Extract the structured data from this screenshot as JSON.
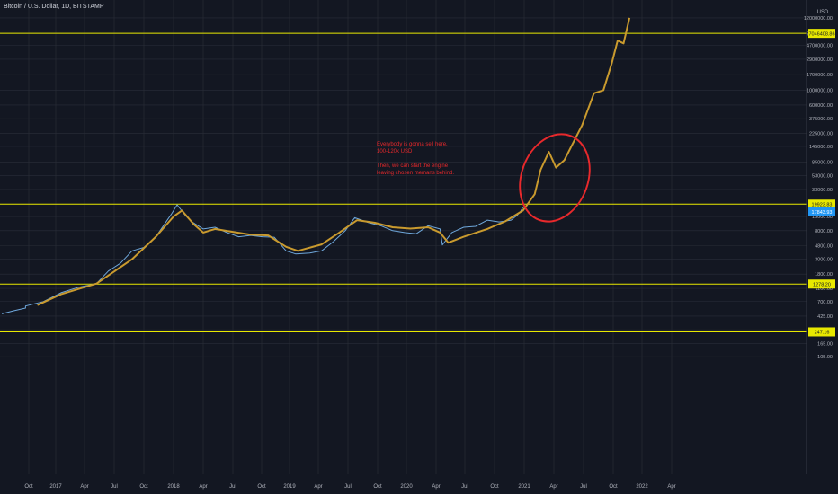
{
  "header": {
    "symbol_title": "Bitcoin / U.S. Dollar, 1D, BITSTAMP"
  },
  "annotation": {
    "line1": "Everybody is gonna sell here.",
    "line2": "100-120k USD",
    "line3": "Then, we can start the engine",
    "line4": "leaving chosen memans behind."
  },
  "colors": {
    "background": "#131722",
    "grid": "#2a2e39",
    "price": "#6fa8dc",
    "projection": "#c99a2e",
    "level_line": "#e8e800",
    "circle": "#e8292c",
    "last_price_badge": "#2196f3"
  },
  "chart_data": {
    "type": "line",
    "title": "Bitcoin / U.S. Dollar, 1D, BITSTAMP",
    "ylabel": "USD",
    "y_scale": "log",
    "y_ticks": [
      "12000000.00",
      "7000000.00",
      "4700000.00",
      "2900000.00",
      "1700000.00",
      "1000000.00",
      "600000.00",
      "375000.00",
      "225000.00",
      "145000.00",
      "85000.00",
      "53000.00",
      "33000.00",
      "20000.00",
      "13000.00",
      "8000.00",
      "4800.00",
      "3000.00",
      "1800.00",
      "1100.00",
      "700.00",
      "425.00",
      "265.00",
      "165.00",
      "105.00"
    ],
    "x_ticks": [
      "Oct",
      "2017",
      "Apr",
      "Jul",
      "Oct",
      "2018",
      "Apr",
      "Jul",
      "Oct",
      "2019",
      "Apr",
      "Jul",
      "Oct",
      "2020",
      "Apr",
      "Jul",
      "Oct",
      "2021",
      "Apr",
      "Jul",
      "Oct",
      "2022",
      "Apr"
    ],
    "horizontal_levels": [
      {
        "label": "7046408.86",
        "value": 7046408.86
      },
      {
        "label": "19923.83",
        "value": 19923.83
      },
      {
        "label": "1278.20",
        "value": 1278.2
      },
      {
        "label": "247.16",
        "value": 247.16
      }
    ],
    "last_price": {
      "label": "17843.93",
      "value": 17843.93
    },
    "series": [
      {
        "values": [
          [
            2016.7,
            600
          ],
          [
            2016.85,
            700
          ],
          [
            2017.0,
            950
          ],
          [
            2017.15,
            1150
          ],
          [
            2017.3,
            1300
          ],
          [
            2017.4,
            2000
          ],
          [
            2017.5,
            2600
          ],
          [
            2017.6,
            4000
          ],
          [
            2017.7,
            4500
          ],
          [
            2017.8,
            6500
          ],
          [
            2017.93,
            14000
          ],
          [
            2017.98,
            19500
          ],
          [
            2018.05,
            13500
          ],
          [
            2018.1,
            11000
          ],
          [
            2018.2,
            8500
          ],
          [
            2018.3,
            9000
          ],
          [
            2018.4,
            7500
          ],
          [
            2018.5,
            6500
          ],
          [
            2018.6,
            6800
          ],
          [
            2018.7,
            6500
          ],
          [
            2018.8,
            6400
          ],
          [
            2018.9,
            4000
          ],
          [
            2018.98,
            3600
          ],
          [
            2019.1,
            3700
          ],
          [
            2019.2,
            4000
          ],
          [
            2019.3,
            5500
          ],
          [
            2019.4,
            8000
          ],
          [
            2019.48,
            12500
          ],
          [
            2019.6,
            10500
          ],
          [
            2019.7,
            9500
          ],
          [
            2019.8,
            8000
          ],
          [
            2019.9,
            7500
          ],
          [
            2020.0,
            7200
          ],
          [
            2020.1,
            9500
          ],
          [
            2020.2,
            8500
          ],
          [
            2020.22,
            4900
          ],
          [
            2020.3,
            7500
          ],
          [
            2020.4,
            9000
          ],
          [
            2020.5,
            9300
          ],
          [
            2020.6,
            11500
          ],
          [
            2020.7,
            10800
          ],
          [
            2020.8,
            11500
          ],
          [
            2020.85,
            13500
          ],
          [
            2020.88,
            15500
          ],
          [
            2020.9,
            17843
          ]
        ]
      },
      {
        "values": [
          [
            2016.8,
            620
          ],
          [
            2017.0,
            900
          ],
          [
            2017.3,
            1300
          ],
          [
            2017.6,
            3000
          ],
          [
            2017.8,
            6500
          ],
          [
            2017.95,
            13000
          ],
          [
            2018.02,
            16000
          ],
          [
            2018.12,
            10000
          ],
          [
            2018.2,
            7500
          ],
          [
            2018.3,
            8500
          ],
          [
            2018.45,
            7700
          ],
          [
            2018.6,
            7000
          ],
          [
            2018.75,
            6800
          ],
          [
            2018.9,
            4600
          ],
          [
            2019.0,
            4000
          ],
          [
            2019.2,
            5000
          ],
          [
            2019.35,
            7500
          ],
          [
            2019.5,
            11500
          ],
          [
            2019.65,
            10500
          ],
          [
            2019.8,
            9000
          ],
          [
            2019.95,
            8600
          ],
          [
            2020.1,
            9000
          ],
          [
            2020.2,
            7500
          ],
          [
            2020.27,
            5300
          ],
          [
            2020.4,
            6500
          ],
          [
            2020.6,
            8500
          ],
          [
            2020.75,
            11000
          ],
          [
            2020.9,
            16000
          ],
          [
            2021.0,
            28000
          ],
          [
            2021.05,
            65000
          ],
          [
            2021.12,
            120000
          ],
          [
            2021.18,
            70000
          ],
          [
            2021.25,
            90000
          ],
          [
            2021.4,
            300000
          ],
          [
            2021.5,
            900000
          ],
          [
            2021.58,
            1000000
          ],
          [
            2021.65,
            2500000
          ],
          [
            2021.7,
            5500000
          ],
          [
            2021.75,
            5000000
          ],
          [
            2021.8,
            12000000
          ]
        ]
      }
    ]
  }
}
